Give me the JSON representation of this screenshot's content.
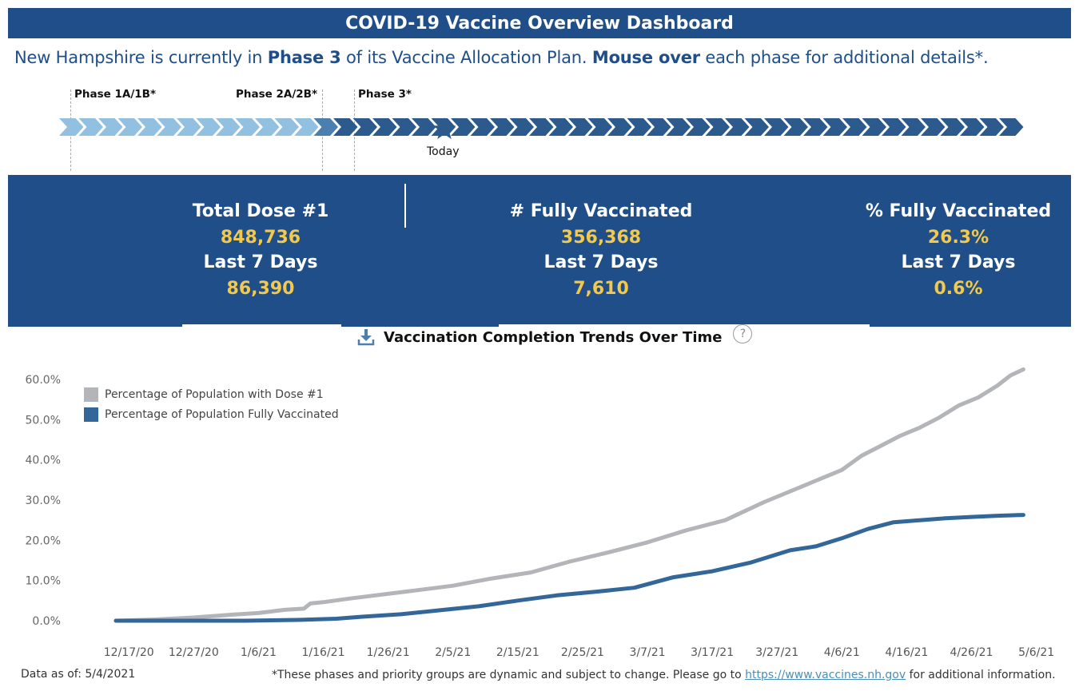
{
  "header": {
    "title": "COVID-19 Vaccine Overview Dashboard",
    "subtitle_parts": [
      {
        "text": "New Hampshire is currently in ",
        "bold": false
      },
      {
        "text": "Phase 3",
        "bold": true
      },
      {
        "text": " of its Vaccine Allocation Plan. ",
        "bold": false
      },
      {
        "text": "Mouse over",
        "bold": true
      },
      {
        "text": " each phase for additional details*.",
        "bold": false
      }
    ]
  },
  "timeline": {
    "phases": [
      {
        "label": "Phase 1A/1B*"
      },
      {
        "label": "Phase 2A/2B*"
      },
      {
        "label": "Phase 3*"
      }
    ],
    "today_label": "Today",
    "colors": {
      "past": "#92c0e0",
      "current": "#2c5a8c",
      "transition": "#4a7fb0"
    }
  },
  "kpis": [
    {
      "label": "Total Dose #1",
      "value": "848,736",
      "sub_label": "Last 7 Days",
      "sub_value": "86,390"
    },
    {
      "label": "# Fully Vaccinated",
      "value": "356,368",
      "sub_label": "Last 7 Days",
      "sub_value": "7,610"
    },
    {
      "label": "% Fully Vaccinated",
      "value": "26.3%",
      "sub_label": "Last 7 Days",
      "sub_value": "0.6%"
    }
  ],
  "chart_section": {
    "title": "Vaccination Completion Trends Over Time",
    "download_icon": "download-icon",
    "help_icon": "?"
  },
  "chart_data": {
    "type": "line",
    "title": "Vaccination Completion Trends Over Time",
    "xlabel": "",
    "ylabel": "",
    "ylim": [
      0,
      60
    ],
    "y_ticks": [
      "0.0%",
      "10.0%",
      "20.0%",
      "30.0%",
      "40.0%",
      "50.0%",
      "60.0%"
    ],
    "x_ticks": [
      "12/17/20",
      "12/27/20",
      "1/6/21",
      "1/16/21",
      "1/26/21",
      "2/5/21",
      "2/15/21",
      "2/25/21",
      "3/7/21",
      "3/17/21",
      "3/27/21",
      "4/6/21",
      "4/16/21",
      "4/26/21",
      "5/6/21"
    ],
    "x_start": "12/15/20",
    "x_range_days_from_start": [
      2,
      142
    ],
    "grid": false,
    "legend_position": "top-left",
    "series": [
      {
        "name": "Percentage of Population with Dose #1",
        "color": "#b3b5b8",
        "days": [
          0,
          6,
          12,
          18,
          22,
          26,
          29,
          30,
          32,
          36,
          40,
          46,
          52,
          58,
          64,
          70,
          76,
          82,
          88,
          94,
          100,
          103,
          106,
          109,
          112,
          115,
          118,
          121,
          124,
          127,
          130,
          133,
          136,
          138,
          140
        ],
        "values": [
          0,
          0.3,
          0.8,
          1.5,
          1.9,
          2.7,
          3.0,
          4.3,
          4.6,
          5.5,
          6.3,
          7.5,
          8.7,
          10.5,
          12.0,
          14.7,
          17.0,
          19.5,
          22.5,
          25.0,
          29.5,
          31.5,
          33.5,
          35.5,
          37.5,
          41.0,
          43.5,
          46.0,
          48.0,
          50.5,
          53.5,
          55.5,
          58.5,
          61.0,
          62.5
        ]
      },
      {
        "name": "Percentage of Population Fully Vaccinated",
        "color": "#336699",
        "days": [
          0,
          10,
          20,
          28,
          34,
          38,
          44,
          50,
          56,
          62,
          68,
          74,
          80,
          86,
          92,
          98,
          104,
          108,
          112,
          116,
          120,
          124,
          128,
          132,
          136,
          140
        ],
        "values": [
          0,
          0,
          0,
          0.2,
          0.5,
          1.0,
          1.6,
          2.6,
          3.6,
          5.0,
          6.3,
          7.2,
          8.2,
          10.8,
          12.3,
          14.5,
          17.5,
          18.5,
          20.5,
          22.8,
          24.5,
          25.0,
          25.5,
          25.8,
          26.1,
          26.3
        ]
      }
    ]
  },
  "footer": {
    "data_as_of": "Data as of: 5/4/2021",
    "disclaimer_prefix": "*These phases and priority groups are dynamic and subject to change. Please go to ",
    "link_text": "https://www.vaccines.nh.gov",
    "disclaimer_suffix": " for additional information."
  }
}
